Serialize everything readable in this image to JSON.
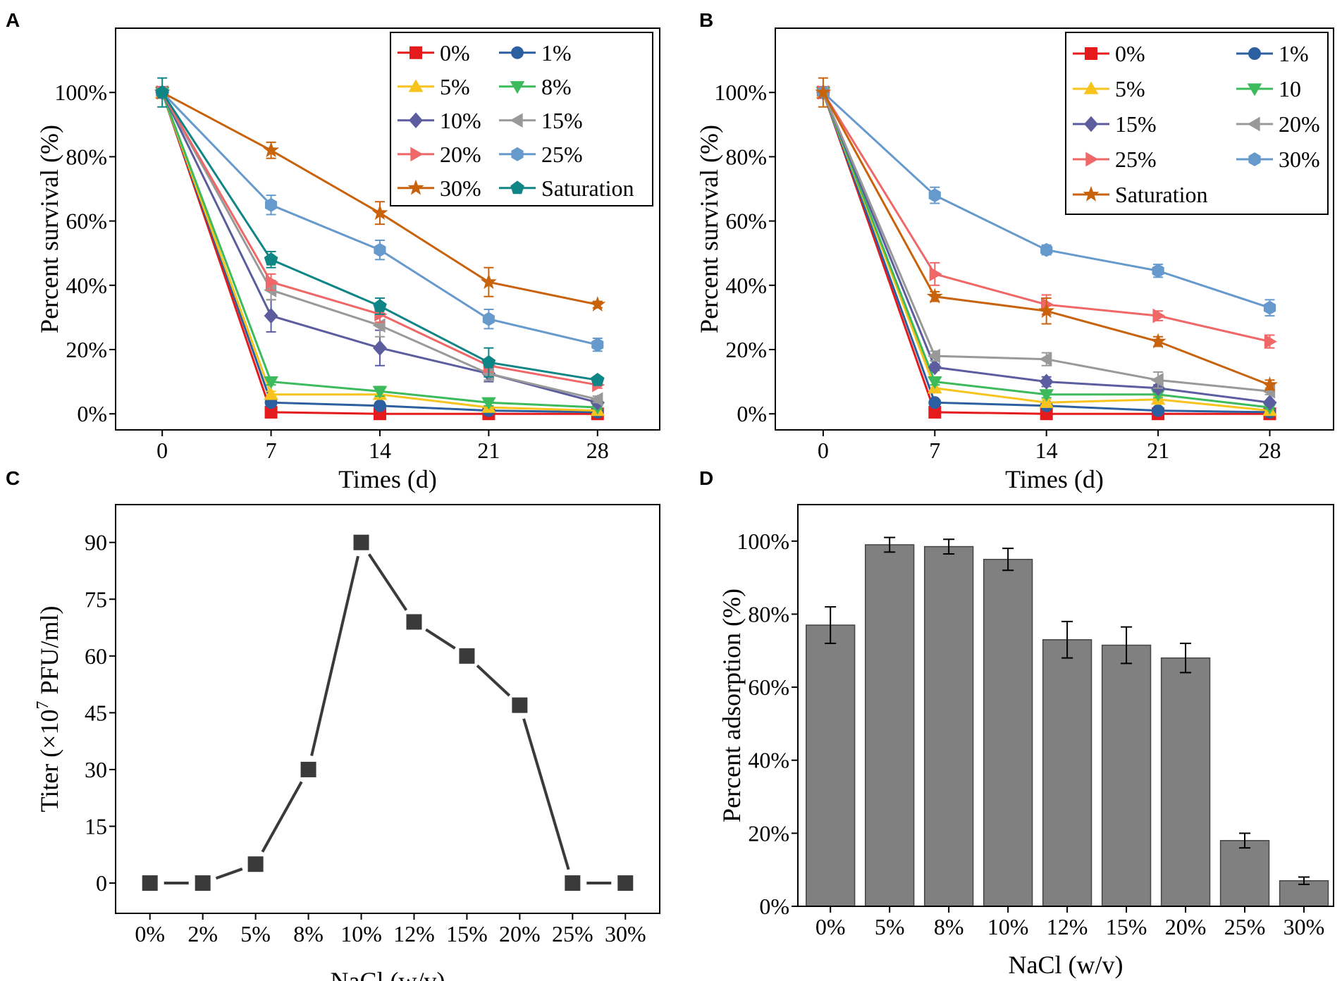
{
  "panel_labels": [
    "A",
    "B",
    "C",
    "D"
  ],
  "chart_data": [
    {
      "id": "A",
      "type": "line",
      "xlabel": "Times (d)",
      "ylabel": "Percent survival (%)",
      "x": [
        0,
        7,
        14,
        21,
        28
      ],
      "xticks": [
        "0",
        "7",
        "14",
        "21",
        "28"
      ],
      "xlim": [
        -3,
        32
      ],
      "yticks": [
        0,
        20,
        40,
        60,
        80,
        100
      ],
      "ytick_labels": [
        "0%",
        "20%",
        "40%",
        "60%",
        "80%",
        "100%"
      ],
      "ylim": [
        -5,
        120
      ],
      "legend_position": "top-right",
      "series": [
        {
          "name": "0%",
          "color": "#e41a1c",
          "marker": "square",
          "values": [
            100,
            0.5,
            0,
            0,
            0
          ],
          "errors": [
            0,
            0.5,
            0.3,
            0.3,
            0.3
          ]
        },
        {
          "name": "1%",
          "color": "#2c5fa0",
          "marker": "circle",
          "values": [
            100,
            3.5,
            2.5,
            1,
            0.5
          ],
          "errors": [
            0,
            0.5,
            0.5,
            0.5,
            0.3
          ]
        },
        {
          "name": "5%",
          "color": "#f7c31c",
          "marker": "triangle-up",
          "values": [
            100,
            6,
            6,
            2,
            1
          ],
          "errors": [
            0,
            1,
            1,
            0.5,
            0.5
          ]
        },
        {
          "name": "8%",
          "color": "#3dbb5c",
          "marker": "triangle-down",
          "values": [
            100,
            10,
            7,
            3.5,
            2
          ],
          "errors": [
            0,
            1,
            1.5,
            1,
            0.5
          ]
        },
        {
          "name": "10%",
          "color": "#5b5d9e",
          "marker": "diamond",
          "values": [
            100,
            30.5,
            20.5,
            12.5,
            3.5
          ],
          "errors": [
            0,
            5,
            5.5,
            2.5,
            1
          ]
        },
        {
          "name": "15%",
          "color": "#999999",
          "marker": "triangle-left",
          "values": [
            100,
            38.5,
            27.5,
            12.5,
            4.5
          ],
          "errors": [
            0,
            3,
            3.5,
            2,
            1
          ]
        },
        {
          "name": "20%",
          "color": "#ef6767",
          "marker": "triangle-right",
          "values": [
            100,
            41,
            31,
            15,
            9
          ],
          "errors": [
            0,
            2.5,
            2.5,
            2,
            1
          ]
        },
        {
          "name": "25%",
          "color": "#6699cc",
          "marker": "hexagon",
          "values": [
            100,
            65,
            51,
            29.5,
            21.5
          ],
          "errors": [
            0,
            3,
            3,
            3,
            2
          ]
        },
        {
          "name": "30%",
          "color": "#c8630c",
          "marker": "star",
          "values": [
            100,
            82,
            62.5,
            41,
            34
          ],
          "errors": [
            0,
            2.5,
            3.5,
            4.5,
            1
          ]
        },
        {
          "name": "Saturation",
          "color": "#108585",
          "marker": "pentagon",
          "values": [
            100,
            48,
            33.5,
            16,
            10.5
          ],
          "errors": [
            4.5,
            2.5,
            2.5,
            4.5,
            1
          ]
        }
      ]
    },
    {
      "id": "B",
      "type": "line",
      "xlabel": "Times (d)",
      "ylabel": "Percent survival (%)",
      "x": [
        0,
        7,
        14,
        21,
        28
      ],
      "xticks": [
        "0",
        "7",
        "14",
        "21",
        "28"
      ],
      "xlim": [
        -3,
        32
      ],
      "yticks": [
        0,
        20,
        40,
        60,
        80,
        100
      ],
      "ytick_labels": [
        "0%",
        "20%",
        "40%",
        "60%",
        "80%",
        "100%"
      ],
      "ylim": [
        -5,
        120
      ],
      "legend_position": "top-right",
      "series": [
        {
          "name": "0%",
          "color": "#e41a1c",
          "marker": "square",
          "values": [
            100,
            0.5,
            0,
            0,
            0
          ],
          "errors": [
            0,
            0.5,
            0.3,
            0.3,
            0.3
          ]
        },
        {
          "name": "1%",
          "color": "#2c5fa0",
          "marker": "circle",
          "values": [
            100,
            3.5,
            2.5,
            1,
            0.5
          ],
          "errors": [
            0,
            0.5,
            0.5,
            0.5,
            0.3
          ]
        },
        {
          "name": "5%",
          "color": "#f7c31c",
          "marker": "triangle-up",
          "values": [
            100,
            8,
            3.5,
            4.5,
            1
          ],
          "errors": [
            0,
            1,
            1,
            1,
            0.5
          ]
        },
        {
          "name": "10",
          "color": "#3dbb5c",
          "marker": "triangle-down",
          "values": [
            100,
            10,
            6,
            6,
            2
          ],
          "errors": [
            0,
            1,
            1,
            1,
            0.5
          ]
        },
        {
          "name": "15%",
          "color": "#5b5d9e",
          "marker": "diamond",
          "values": [
            100,
            14.5,
            10,
            8,
            3.5
          ],
          "errors": [
            0,
            1,
            1.5,
            1,
            0.5
          ]
        },
        {
          "name": "20%",
          "color": "#999999",
          "marker": "triangle-left",
          "values": [
            100,
            18,
            17,
            10.5,
            7
          ],
          "errors": [
            0,
            1.5,
            2,
            2.5,
            1
          ]
        },
        {
          "name": "25%",
          "color": "#ef6767",
          "marker": "triangle-right",
          "values": [
            100,
            43.5,
            34,
            30.5,
            22.5
          ],
          "errors": [
            0,
            3.5,
            3,
            1.5,
            2
          ]
        },
        {
          "name": "30%",
          "color": "#6699cc",
          "marker": "hexagon",
          "values": [
            100,
            68,
            51,
            44.5,
            33
          ],
          "errors": [
            0,
            2.5,
            1.5,
            2,
            2.5
          ]
        },
        {
          "name": "Saturation",
          "color": "#c8630c",
          "marker": "star",
          "values": [
            100,
            36.5,
            32,
            22.5,
            9
          ],
          "errors": [
            4.5,
            1.5,
            4,
            1.5,
            1.5
          ]
        }
      ]
    },
    {
      "id": "C",
      "type": "line",
      "xlabel": "NaCl (w/v)",
      "ylabel_prefix": "Titer (×10",
      "ylabel_exponent": "7",
      "ylabel_suffix": " PFU/ml)",
      "categories": [
        "0%",
        "2%",
        "5%",
        "8%",
        "10%",
        "12%",
        "15%",
        "20%",
        "25%",
        "30%"
      ],
      "values": [
        0,
        0,
        5,
        30,
        90,
        69,
        60,
        47,
        0,
        0
      ],
      "yticks": [
        0,
        15,
        30,
        45,
        60,
        75,
        90
      ],
      "ylim": [
        -8,
        100
      ],
      "color": "#3a3a3a",
      "marker": "square"
    },
    {
      "id": "D",
      "type": "bar",
      "xlabel": "NaCl (w/v)",
      "ylabel": "Percent adsorption (%)",
      "categories": [
        "0%",
        "5%",
        "8%",
        "10%",
        "12%",
        "15%",
        "20%",
        "25%",
        "30%"
      ],
      "values": [
        77,
        99,
        98.5,
        95,
        73,
        71.5,
        68,
        18,
        7
      ],
      "errors": [
        5,
        2,
        2,
        3,
        5,
        5,
        4,
        2,
        1
      ],
      "yticks": [
        0,
        20,
        40,
        60,
        80,
        100
      ],
      "ytick_labels": [
        "0%",
        "20%",
        "40%",
        "60%",
        "80%",
        "100%"
      ],
      "ylim": [
        0,
        110
      ],
      "color": "#808080"
    }
  ]
}
